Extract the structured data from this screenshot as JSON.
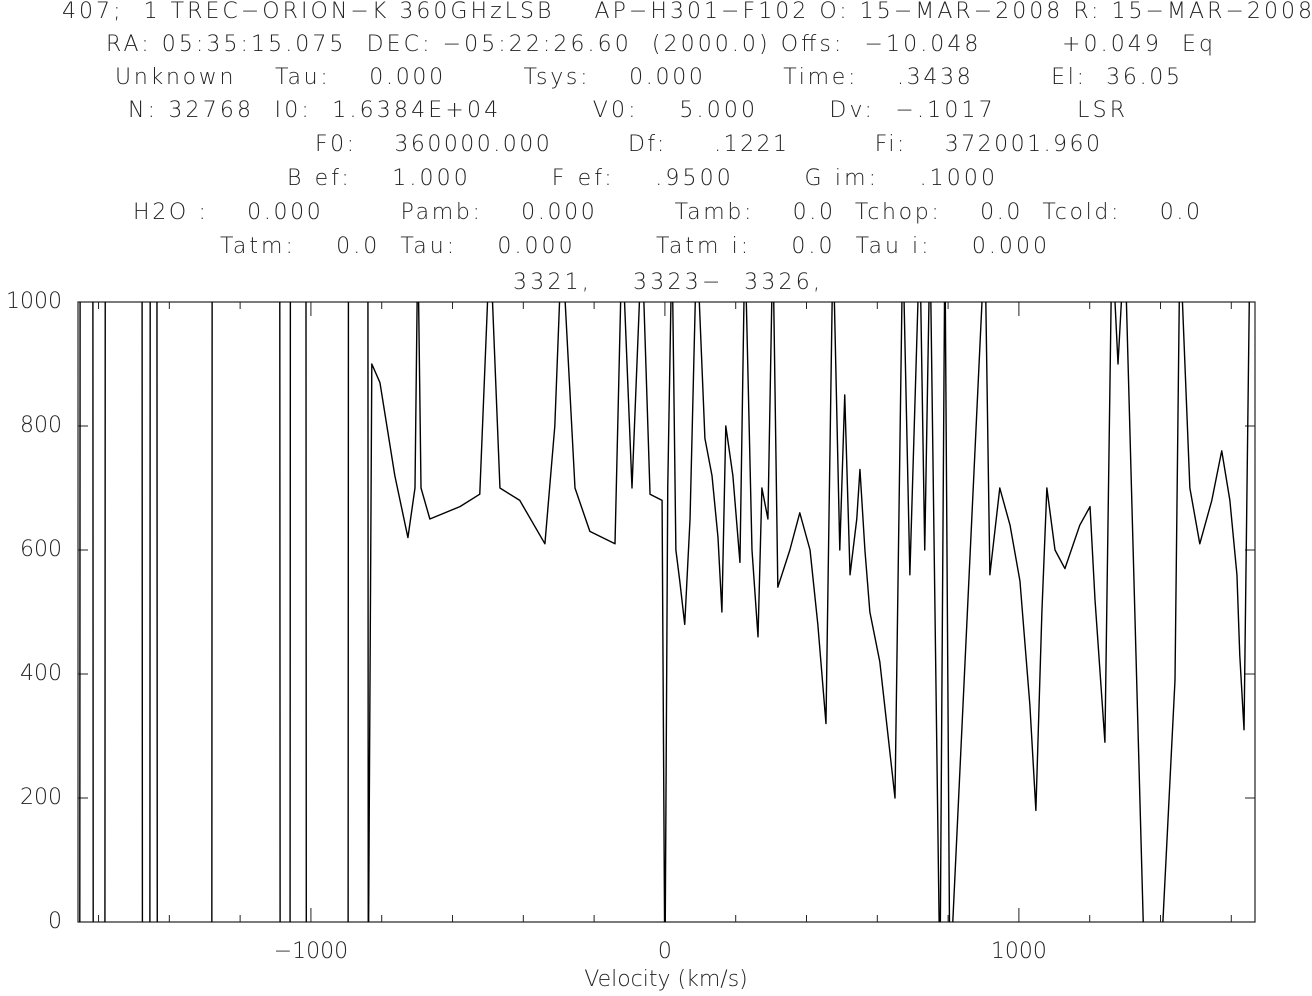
{
  "chart_data": {
    "type": "line",
    "header_lines": [
      "407;  1 TREC−ORION−K 360GHzLSB    AP−H301−F102 O: 15−MAR−2008 R: 15−MAR−2008",
      "RA: 05:35:15.075  DEC: −05:22:26.60  (2000.0) Offs:  −10.048        +0.049  Eq",
      "Unknown    Tau:    0.000        Tsys:    0.000        Time:    .3438        El:  36.05",
      "N: 32768  I0:  1.6384E+04         V0:    5.000       Dv:  −.1017        LSR",
      "F0:    360000.000        Df:     .1221         Fi:    372001.960",
      "B ef:    1.000        F ef:    .9500       G im:    .1000",
      "H2O :    0.000        Pamb:    0.000        Tamb:    0.0  Tchop:    0.0  Tcold:    0.0",
      "Tatm:    0.0  Tau:    0.000        Tatm i:    0.0  Tau i:    0.000",
      "3321,    3323−  3326,"
    ],
    "x_label": "Velocity (km/s)",
    "x": [
      -1653,
      -1652,
      -1616,
      -1615,
      -1582,
      -1581,
      -1477,
      -1476,
      -1455,
      -1454,
      -1435,
      -1434,
      -1280,
      -1279,
      -1088,
      -1087,
      -1059,
      -1058,
      -1014,
      -1013,
      -895,
      -894,
      -839,
      -838,
      -828,
      -805,
      -763,
      -726,
      -706,
      -698,
      -689,
      -664,
      -579,
      -523,
      -494,
      -466,
      -410,
      -339,
      -311,
      -291,
      -254,
      -212,
      -141,
      -121,
      -93,
      -65,
      -42,
      -8,
      0,
      8,
      20,
      31,
      42,
      56,
      71,
      90,
      113,
      133,
      150,
      161,
      172,
      192,
      212,
      226,
      246,
      263,
      274,
      291,
      305,
      319,
      353,
      381,
      410,
      432,
      455,
      475,
      494,
      508,
      523,
      542,
      551,
      565,
      579,
      607,
      650,
      672,
      692,
      720,
      734,
      749,
      777,
      791,
      805,
      904,
      918,
      946,
      975,
      1003,
      1031,
      1048,
      1065,
      1079,
      1102,
      1130,
      1172,
      1201,
      1215,
      1243,
      1263,
      1280,
      1299,
      1356,
      1398,
      1441,
      1455,
      1483,
      1511,
      1545,
      1573,
      1596,
      1616,
      1624,
      1636,
      1653
    ],
    "series": [
      {
        "color": "#000000",
        "values": [
          -100,
          1100,
          1100,
          -100,
          -100,
          1100,
          1100,
          -100,
          -100,
          1100,
          1100,
          -100,
          -100,
          1100,
          1100,
          -100,
          -100,
          1100,
          1100,
          -100,
          -100,
          1100,
          1100,
          -100,
          900,
          870,
          720,
          620,
          700,
          1100,
          700,
          650,
          670,
          690,
          1100,
          700,
          680,
          610,
          800,
          1100,
          700,
          630,
          610,
          1100,
          700,
          1100,
          690,
          680,
          -100,
          700,
          1100,
          600,
          550,
          480,
          650,
          1100,
          780,
          720,
          620,
          500,
          800,
          720,
          580,
          1100,
          600,
          460,
          700,
          650,
          1100,
          540,
          600,
          660,
          600,
          480,
          320,
          1100,
          600,
          850,
          560,
          650,
          730,
          600,
          500,
          420,
          200,
          1100,
          560,
          1100,
          600,
          1100,
          -100,
          1100,
          -100,
          1100,
          560,
          700,
          640,
          550,
          350,
          180,
          500,
          700,
          600,
          570,
          640,
          670,
          520,
          290,
          1100,
          900,
          1100,
          -100,
          -100,
          390,
          1100,
          700,
          610,
          680,
          760,
          680,
          560,
          430,
          310,
          1100
        ]
      }
    ],
    "xlim": [
      -1658,
      1667
    ],
    "ylim": [
      0,
      1000
    ],
    "xticks": [
      {
        "value": -1000,
        "label": "−1000"
      },
      0,
      1000
    ],
    "xminorticks": [
      -1600,
      -1400,
      -1200,
      -800,
      -600,
      -400,
      -200,
      200,
      400,
      600,
      800,
      1200,
      1400,
      1600
    ],
    "yticks": [
      0,
      200,
      400,
      600,
      800,
      1000
    ]
  }
}
